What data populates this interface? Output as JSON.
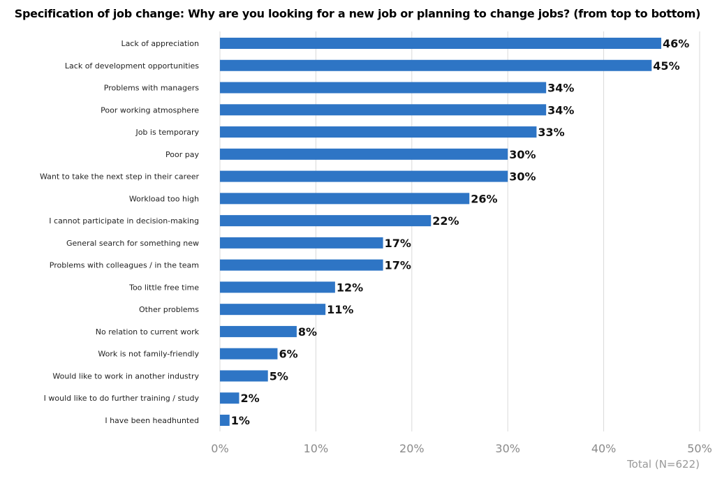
{
  "chart_data": {
    "type": "bar",
    "orientation": "horizontal",
    "title": "Specification of job change: Why are you looking for a new job or planning to change jobs? (from top to bottom)",
    "categories": [
      "Lack of appreciation",
      "Lack of development opportunities",
      "Problems with managers",
      "Poor working atmosphere",
      "Job is temporary",
      "Poor pay",
      "Want to take the next step in their career",
      "Workload too high",
      "I cannot participate in decision-making",
      "General search for something new",
      "Problems with colleagues / in the team",
      "Too little free time",
      "Other problems",
      "No relation to current work",
      "Work is not family-friendly",
      "Would like to work in another industry",
      "I would like to do further training / study",
      "I have been headhunted"
    ],
    "values": [
      46,
      45,
      34,
      34,
      33,
      30,
      30,
      26,
      22,
      17,
      17,
      12,
      11,
      8,
      6,
      5,
      2,
      1
    ],
    "data_labels": [
      "46%",
      "45%",
      "34%",
      "34%",
      "33%",
      "30%",
      "30%",
      "26%",
      "22%",
      "17%",
      "17%",
      "12%",
      "11%",
      "8%",
      "6%",
      "5%",
      "2%",
      "1%"
    ],
    "xlim": [
      0,
      50
    ],
    "xticks": [
      0,
      10,
      20,
      30,
      40,
      50
    ],
    "xtick_labels": [
      "0%",
      "10%",
      "20%",
      "30%",
      "40%",
      "50%"
    ],
    "xlabel": "",
    "ylabel": "",
    "grid": true,
    "bar_color": "#2E75C5",
    "note": "Total (N=622)"
  }
}
